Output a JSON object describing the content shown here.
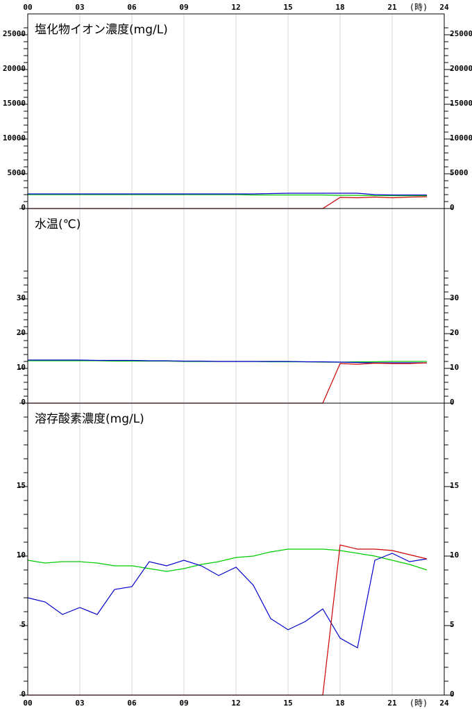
{
  "chart_data": [
    {
      "type": "line",
      "title": "塩化物イオン濃度(mg/L)",
      "x_label": "(時)",
      "x": [
        0,
        1,
        2,
        3,
        4,
        5,
        6,
        7,
        8,
        9,
        10,
        11,
        12,
        13,
        14,
        15,
        16,
        17,
        18,
        19,
        20,
        21,
        22,
        23
      ],
      "xlim": [
        0,
        24
      ],
      "xticks": [
        {
          "value": 0,
          "label": "00"
        },
        {
          "value": 3,
          "label": "03"
        },
        {
          "value": 6,
          "label": "06"
        },
        {
          "value": 9,
          "label": "09"
        },
        12,
        15,
        18,
        21,
        24
      ],
      "ylim": [
        0,
        28000
      ],
      "yticks": [
        0,
        5000,
        10000,
        15000,
        20000,
        25000
      ],
      "minor_yticks": [
        1000,
        2000,
        3000,
        4000,
        6000,
        7000,
        8000,
        9000,
        11000,
        12000,
        13000,
        14000,
        16000,
        17000,
        18000,
        19000,
        21000,
        22000,
        23000,
        24000,
        26000
      ],
      "grid": true,
      "series": [
        {
          "color": "#00cc00",
          "values": [
            2000,
            2000,
            2000,
            2000,
            2000,
            2000,
            2000,
            2000,
            2000,
            2000,
            2000,
            2000,
            2000,
            1950,
            1950,
            1950,
            1950,
            1950,
            1900,
            1900,
            1850,
            1850,
            1850,
            1850
          ]
        },
        {
          "color": "#0000cc",
          "values": [
            2100,
            2100,
            2100,
            2100,
            2100,
            2100,
            2100,
            2100,
            2100,
            2100,
            2100,
            2100,
            2100,
            2100,
            2150,
            2200,
            2200,
            2200,
            2200,
            2200,
            2000,
            1950,
            1950,
            1950
          ]
        },
        {
          "color": "#cc0000",
          "values": [
            0,
            0,
            0,
            0,
            0,
            0,
            0,
            0,
            0,
            0,
            0,
            0,
            0,
            0,
            0,
            0,
            0,
            0,
            1600,
            1550,
            1650,
            1550,
            1650,
            1700
          ]
        }
      ]
    },
    {
      "type": "line",
      "title": "水温(℃)",
      "x": [
        0,
        1,
        2,
        3,
        4,
        5,
        6,
        7,
        8,
        9,
        10,
        11,
        12,
        13,
        14,
        15,
        16,
        17,
        18,
        19,
        20,
        21,
        22,
        23
      ],
      "xlim": [
        0,
        24
      ],
      "xgrid": [
        3,
        6,
        9,
        12,
        15,
        18,
        21
      ],
      "ylim": [
        0,
        56
      ],
      "yticks": [
        0,
        10,
        20,
        30
      ],
      "minor_yticks": [
        2,
        4,
        6,
        8,
        12,
        14,
        16,
        18,
        22,
        24,
        26,
        28,
        32,
        34,
        36,
        38
      ],
      "grid": true,
      "series": [
        {
          "color": "#00cc00",
          "values": [
            12.2,
            12.2,
            12.2,
            12.2,
            12.2,
            12.1,
            12.1,
            12.1,
            12.1,
            12.0,
            12.0,
            12.0,
            12.0,
            12.0,
            11.9,
            11.9,
            11.9,
            11.8,
            11.8,
            11.9,
            11.9,
            12.0,
            12.0,
            12.0
          ]
        },
        {
          "color": "#0000cc",
          "values": [
            12.4,
            12.4,
            12.4,
            12.4,
            12.3,
            12.3,
            12.3,
            12.2,
            12.2,
            12.1,
            12.1,
            12.0,
            12.0,
            12.0,
            12.0,
            12.0,
            11.9,
            11.9,
            11.8,
            11.7,
            11.6,
            11.6,
            11.6,
            11.6
          ]
        },
        {
          "color": "#cc0000",
          "values": [
            0,
            0,
            0,
            0,
            0,
            0,
            0,
            0,
            0,
            0,
            0,
            0,
            0,
            0,
            0,
            0,
            0,
            0,
            11.4,
            11.2,
            11.5,
            11.4,
            11.4,
            11.6
          ]
        }
      ]
    },
    {
      "type": "line",
      "title": "溶存酸素濃度(mg/L)",
      "x_label": "(時)",
      "x": [
        0,
        1,
        2,
        3,
        4,
        5,
        6,
        7,
        8,
        9,
        10,
        11,
        12,
        13,
        14,
        15,
        16,
        17,
        18,
        19,
        20,
        21,
        22,
        23
      ],
      "xlim": [
        0,
        24
      ],
      "xticks": [
        {
          "value": 0,
          "label": "00"
        },
        {
          "value": 3,
          "label": "03"
        },
        {
          "value": 6,
          "label": "06"
        },
        {
          "value": 9,
          "label": "09"
        },
        12,
        15,
        18,
        21,
        24
      ],
      "ylim": [
        0,
        21
      ],
      "yticks": [
        0,
        5,
        10,
        15
      ],
      "minor_yticks": [
        1,
        2,
        3,
        4,
        6,
        7,
        8,
        9,
        11,
        12,
        13,
        14,
        16,
        17,
        18,
        19,
        20
      ],
      "grid": true,
      "series": [
        {
          "color": "#00cc00",
          "values": [
            9.7,
            9.5,
            9.6,
            9.6,
            9.5,
            9.3,
            9.3,
            9.1,
            8.9,
            9.1,
            9.4,
            9.6,
            9.9,
            10.0,
            10.3,
            10.5,
            10.5,
            10.5,
            10.4,
            10.2,
            10.0,
            9.7,
            9.4,
            9.0
          ]
        },
        {
          "color": "#0000cc",
          "values": [
            7.0,
            6.7,
            5.8,
            6.3,
            5.8,
            7.6,
            7.8,
            9.6,
            9.3,
            9.7,
            9.3,
            8.6,
            9.2,
            7.9,
            5.5,
            4.7,
            5.3,
            6.2,
            4.1,
            3.4,
            9.7,
            10.2,
            9.6,
            9.8
          ]
        },
        {
          "color": "#cc0000",
          "values": [
            0,
            0,
            0,
            0,
            0,
            0,
            0,
            0,
            0,
            0,
            0,
            0,
            0,
            0,
            0,
            0,
            0,
            0,
            10.8,
            10.5,
            10.5,
            10.4,
            10.1,
            9.8
          ]
        }
      ]
    }
  ]
}
